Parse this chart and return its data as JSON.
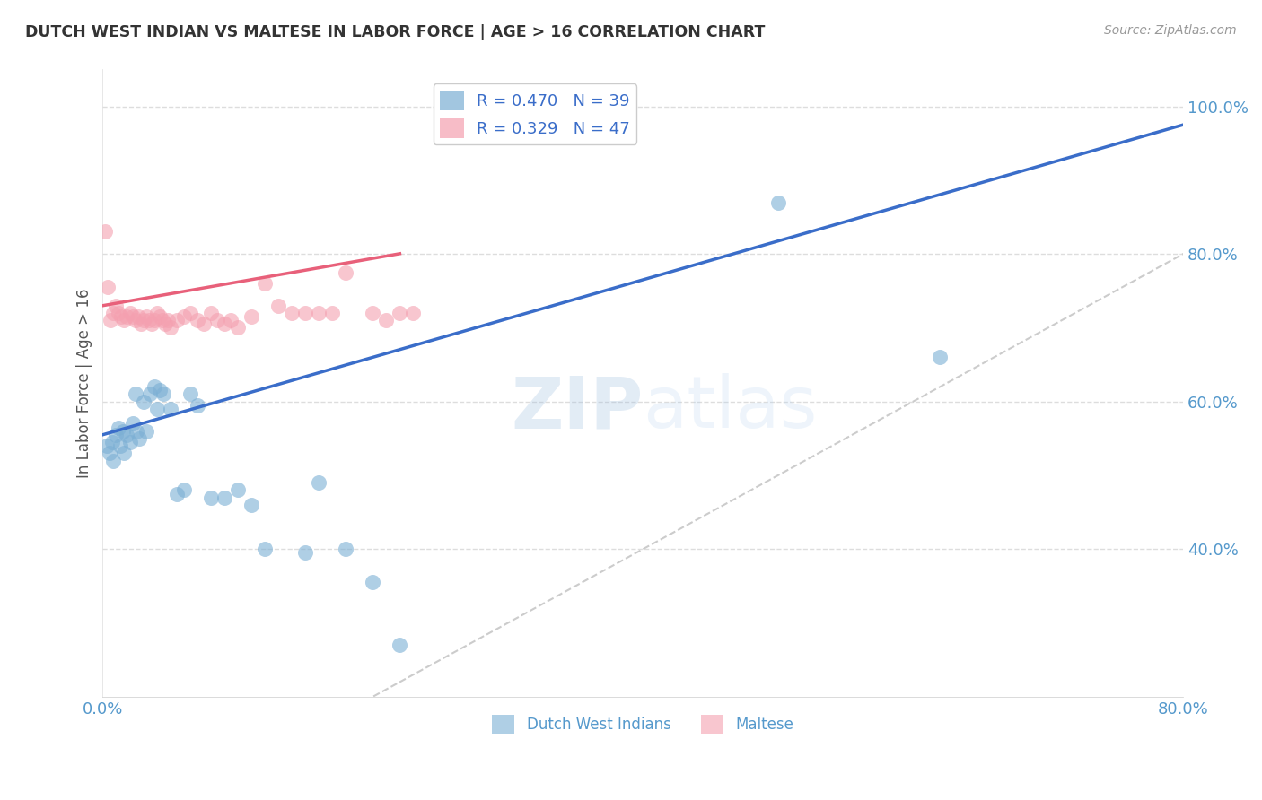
{
  "title": "DUTCH WEST INDIAN VS MALTESE IN LABOR FORCE | AGE > 16 CORRELATION CHART",
  "source": "Source: ZipAtlas.com",
  "ylabel": "In Labor Force | Age > 16",
  "xlim": [
    0.0,
    0.8
  ],
  "ylim": [
    0.2,
    1.05
  ],
  "yticks": [
    0.4,
    0.6,
    0.8,
    1.0
  ],
  "ytick_labels": [
    "40.0%",
    "60.0%",
    "80.0%",
    "100.0%"
  ],
  "legend_r1": "R = 0.470",
  "legend_n1": "N = 39",
  "legend_r2": "R = 0.329",
  "legend_n2": "N = 47",
  "blue_color": "#7bafd4",
  "pink_color": "#f4a0b0",
  "trendline_blue": "#3a6dc9",
  "trendline_pink": "#e8607a",
  "diagonal_color": "#cccccc",
  "watermark_zip": "ZIP",
  "watermark_atlas": "atlas",
  "axis_tick_color": "#5599cc",
  "grid_color": "#dddddd",
  "title_color": "#333333",
  "dutch_points_x": [
    0.003,
    0.005,
    0.007,
    0.008,
    0.01,
    0.012,
    0.013,
    0.015,
    0.016,
    0.018,
    0.02,
    0.022,
    0.024,
    0.025,
    0.027,
    0.03,
    0.032,
    0.035,
    0.038,
    0.04,
    0.042,
    0.045,
    0.05,
    0.055,
    0.06,
    0.065,
    0.07,
    0.08,
    0.09,
    0.1,
    0.11,
    0.12,
    0.15,
    0.16,
    0.18,
    0.2,
    0.22,
    0.5,
    0.62
  ],
  "dutch_points_y": [
    0.54,
    0.53,
    0.545,
    0.52,
    0.555,
    0.565,
    0.54,
    0.56,
    0.53,
    0.555,
    0.545,
    0.57,
    0.61,
    0.56,
    0.55,
    0.6,
    0.56,
    0.61,
    0.62,
    0.59,
    0.615,
    0.61,
    0.59,
    0.475,
    0.48,
    0.61,
    0.595,
    0.47,
    0.47,
    0.48,
    0.46,
    0.4,
    0.395,
    0.49,
    0.4,
    0.355,
    0.27,
    0.87,
    0.66
  ],
  "maltese_points_x": [
    0.002,
    0.004,
    0.006,
    0.008,
    0.01,
    0.012,
    0.014,
    0.016,
    0.018,
    0.02,
    0.022,
    0.024,
    0.026,
    0.028,
    0.03,
    0.032,
    0.034,
    0.036,
    0.038,
    0.04,
    0.042,
    0.044,
    0.046,
    0.048,
    0.05,
    0.055,
    0.06,
    0.065,
    0.07,
    0.075,
    0.08,
    0.085,
    0.09,
    0.095,
    0.1,
    0.11,
    0.12,
    0.13,
    0.14,
    0.15,
    0.16,
    0.17,
    0.18,
    0.2,
    0.21,
    0.22,
    0.23
  ],
  "maltese_points_y": [
    0.83,
    0.755,
    0.71,
    0.72,
    0.73,
    0.72,
    0.715,
    0.71,
    0.715,
    0.72,
    0.715,
    0.71,
    0.715,
    0.705,
    0.71,
    0.715,
    0.71,
    0.705,
    0.71,
    0.72,
    0.715,
    0.71,
    0.705,
    0.71,
    0.7,
    0.71,
    0.715,
    0.72,
    0.71,
    0.705,
    0.72,
    0.71,
    0.705,
    0.71,
    0.7,
    0.715,
    0.76,
    0.73,
    0.72,
    0.72,
    0.72,
    0.72,
    0.775,
    0.72,
    0.71,
    0.72,
    0.72
  ]
}
